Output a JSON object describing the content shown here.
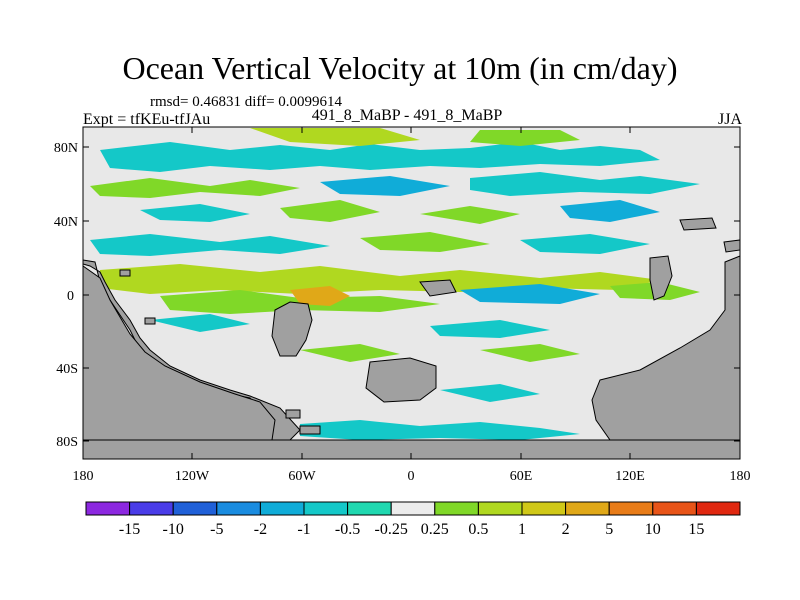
{
  "chart_data": {
    "type": "heatmap",
    "title": "Ocean Vertical Velocity at 10m (in cm/day)",
    "subtitle": "rmsd= 0.46831 diff= 0.0099614",
    "left_label": "Expt = tfKEu-tfJAu",
    "center_label": "491_8_MaBP - 491_8_MaBP",
    "right_label": "JJA",
    "x_ticks": [
      "180",
      "120W",
      "60W",
      "0",
      "60E",
      "120E",
      "180"
    ],
    "y_ticks": [
      "80N",
      "40N",
      "0",
      "40S",
      "80S"
    ],
    "colorbar": {
      "labels": [
        "-15",
        "-10",
        "-5",
        "-2",
        "-1",
        "-0.5",
        "-0.25",
        "0.25",
        "0.5",
        "1",
        "2",
        "5",
        "10",
        "15"
      ],
      "colors": [
        "#8c28e0",
        "#4a3ce8",
        "#2060d8",
        "#1a8ce0",
        "#10acd8",
        "#14c8c8",
        "#20d8b0",
        "#ececec",
        "#80d828",
        "#b0d820",
        "#d0c818",
        "#e0a818",
        "#e87c18",
        "#e85418",
        "#e02810"
      ]
    },
    "land_color": "#a0a0a0",
    "background_color": "#e8e8e8"
  }
}
